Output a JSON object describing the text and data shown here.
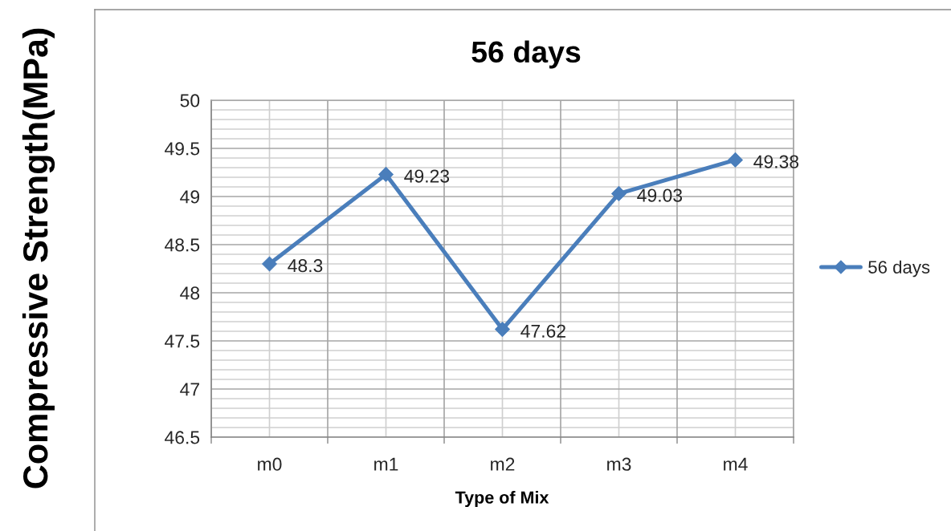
{
  "chart_data": {
    "type": "line",
    "title": "56 days",
    "xlabel": "Type of Mix",
    "ylabel": "Compressive Strength(MPa)",
    "categories": [
      "m0",
      "m1",
      "m2",
      "m3",
      "m4"
    ],
    "series": [
      {
        "name": "56 days",
        "color": "#4a7ebb",
        "values": [
          48.3,
          49.23,
          47.62,
          49.03,
          49.38
        ]
      }
    ],
    "ylim": [
      46.5,
      50
    ],
    "yticks": [
      46.5,
      47,
      47.5,
      48,
      48.5,
      49,
      49.5,
      50
    ],
    "grid": true,
    "legend": "right",
    "marker": "diamond",
    "line_style": "solid",
    "data_labels": true
  }
}
